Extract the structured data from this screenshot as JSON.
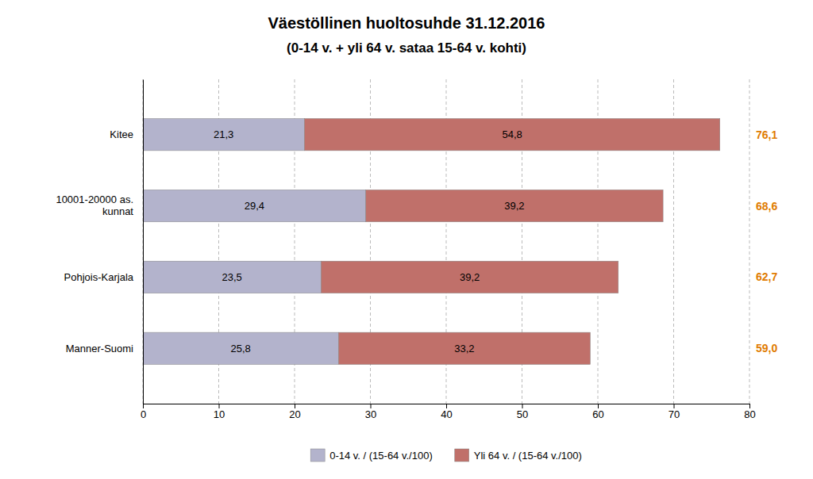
{
  "chart_data": {
    "type": "bar",
    "orientation": "horizontal",
    "stacked": true,
    "title": "Väestöllinen huoltosuhde 31.12.2016",
    "subtitle": "(0-14 v. + yli 64 v. sataa 15-64 v. kohti)",
    "categories": [
      "Kitee",
      "10001-20000 as.\nkunnat",
      "Pohjois-Karjala",
      "Manner-Suomi"
    ],
    "series": [
      {
        "name": "0-14 v. / (15-64 v./100)",
        "color": "#b3b3cc",
        "values": [
          21.3,
          29.4,
          23.5,
          25.8
        ],
        "value_labels": [
          "21,3",
          "29,4",
          "23,5",
          "25,8"
        ]
      },
      {
        "name": "Yli 64 v. / (15-64 v./100)",
        "color": "#c0706a",
        "values": [
          54.8,
          39.2,
          39.2,
          33.2
        ],
        "value_labels": [
          "54,8",
          "39,2",
          "39,2",
          "33,2"
        ]
      }
    ],
    "totals": {
      "values": [
        76.1,
        68.6,
        62.7,
        59.0
      ],
      "value_labels": [
        "76,1",
        "68,6",
        "62,7",
        "59,0"
      ],
      "color": "#e07b00"
    },
    "data_labels": true,
    "xlim": [
      0,
      80
    ],
    "xticks": [
      0,
      10,
      20,
      30,
      40,
      50,
      60,
      70,
      80
    ],
    "grid": true,
    "legend": "bottom"
  }
}
